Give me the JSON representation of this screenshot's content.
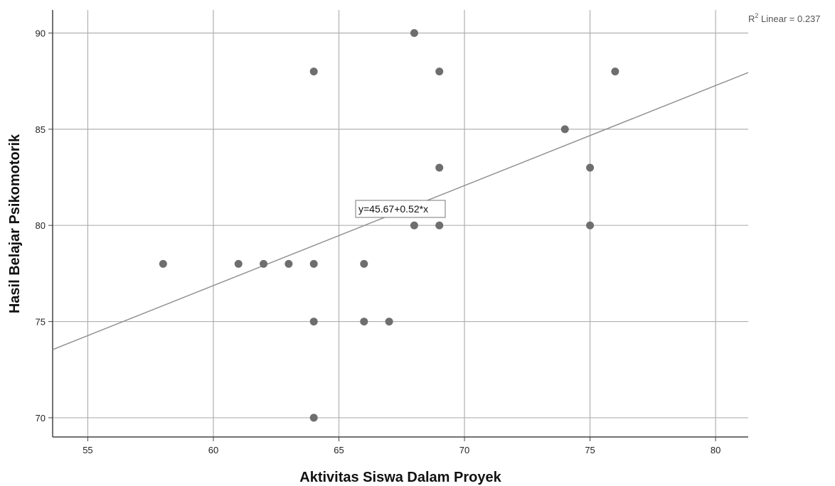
{
  "chart_data": {
    "type": "scatter",
    "title": "",
    "xlabel": "Aktivitas Siswa Dalam Proyek",
    "ylabel": "Hasil Belajar Psikomotorik",
    "xlim": [
      53.6,
      81.3
    ],
    "ylim": [
      69,
      91.2
    ],
    "x_ticks": [
      55,
      60,
      65,
      70,
      75,
      80
    ],
    "y_ticks": [
      70,
      75,
      80,
      85,
      90
    ],
    "grid": true,
    "point_color": "#6e6e6e",
    "line_color": "#8c8c8c",
    "grid_color": "#b0b0b0",
    "points": [
      {
        "x": 58,
        "y": 78
      },
      {
        "x": 61,
        "y": 78
      },
      {
        "x": 62,
        "y": 78
      },
      {
        "x": 63,
        "y": 78
      },
      {
        "x": 64,
        "y": 88
      },
      {
        "x": 64,
        "y": 78
      },
      {
        "x": 64,
        "y": 75
      },
      {
        "x": 64,
        "y": 70
      },
      {
        "x": 66,
        "y": 78
      },
      {
        "x": 66,
        "y": 75
      },
      {
        "x": 67,
        "y": 75
      },
      {
        "x": 68,
        "y": 90
      },
      {
        "x": 68,
        "y": 80
      },
      {
        "x": 69,
        "y": 88
      },
      {
        "x": 69,
        "y": 83
      },
      {
        "x": 69,
        "y": 80
      },
      {
        "x": 74,
        "y": 85
      },
      {
        "x": 75,
        "y": 83
      },
      {
        "x": 75,
        "y": 80
      },
      {
        "x": 76,
        "y": 88
      }
    ],
    "fit_line": {
      "intercept": 45.67,
      "slope": 0.52
    },
    "fit_label": "y=45.67+0.52*x",
    "r2_prefix": "R",
    "r2_sup": "2",
    "r2_text": " Linear = 0.237"
  }
}
